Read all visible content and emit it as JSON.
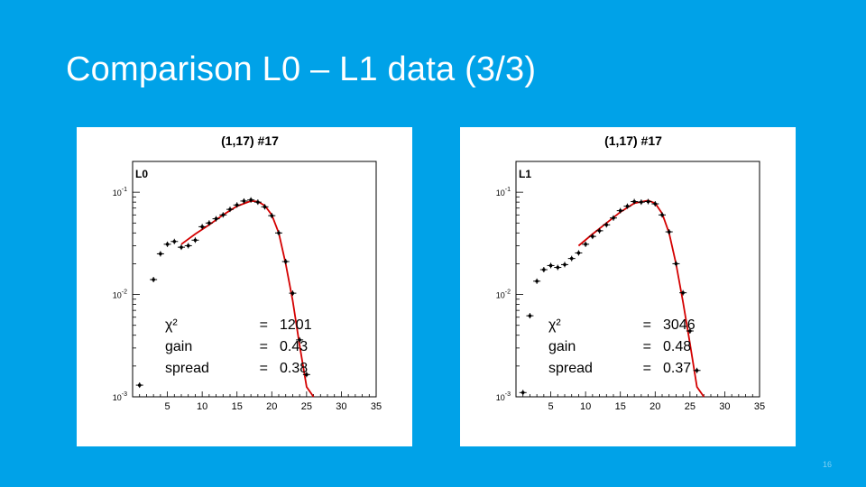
{
  "slide": {
    "title": "Comparison L0 – L1 data (3/3)",
    "page_number": "16"
  },
  "colors": {
    "background": "#00A2E8",
    "fit_line": "#d40000",
    "points": "#000000"
  },
  "chart_data": [
    {
      "type": "scatter",
      "panel_label": "L0",
      "title": "(1,17) #17",
      "xlabel": "",
      "ylabel": "",
      "xlim": [
        0,
        35
      ],
      "ylim": [
        0.001,
        0.2
      ],
      "yscale": "log",
      "xticks": [
        "5",
        "10",
        "15",
        "20",
        "25",
        "30",
        "35"
      ],
      "yticks": [
        "10^-3",
        "10^-2",
        "10^-1"
      ],
      "x": [
        1.0,
        3.0,
        4.0,
        5.0,
        6.0,
        7.0,
        8.0,
        9.0,
        10.0,
        11.0,
        12.0,
        13.0,
        14.0,
        15.0,
        16.0,
        17.0,
        18.0,
        19.0,
        20.0,
        21.0,
        22.0,
        23.0,
        24.0,
        25.0
      ],
      "y": [
        0.0013,
        0.014,
        0.025,
        0.031,
        0.033,
        0.029,
        0.03,
        0.034,
        0.046,
        0.05,
        0.055,
        0.06,
        0.068,
        0.075,
        0.082,
        0.084,
        0.08,
        0.072,
        0.059,
        0.04,
        0.021,
        0.0103,
        0.0036,
        0.00165
      ],
      "fit": {
        "x": [
          7,
          9,
          11,
          13,
          15,
          17,
          18,
          19,
          20,
          21,
          22,
          23,
          24,
          25,
          26
        ],
        "y": [
          0.031,
          0.039,
          0.048,
          0.06,
          0.073,
          0.082,
          0.081,
          0.074,
          0.06,
          0.04,
          0.02,
          0.0088,
          0.0032,
          0.00125,
          0.001
        ]
      },
      "annotations": [
        {
          "name": "χ²",
          "value": "1201"
        },
        {
          "name": "gain",
          "value": "0.43"
        },
        {
          "name": "spread",
          "value": "0.38"
        }
      ]
    },
    {
      "type": "scatter",
      "panel_label": "L1",
      "title": "(1,17) #17",
      "xlabel": "",
      "ylabel": "",
      "xlim": [
        0,
        35
      ],
      "ylim": [
        0.001,
        0.2
      ],
      "yscale": "log",
      "xticks": [
        "5",
        "10",
        "15",
        "20",
        "25",
        "30",
        "35"
      ],
      "yticks": [
        "10^-3",
        "10^-2",
        "10^-1"
      ],
      "x": [
        1.0,
        2.0,
        3.0,
        4.0,
        5.0,
        6.0,
        7.0,
        8.0,
        9.0,
        10.0,
        11.0,
        12.0,
        13.0,
        14.0,
        15.0,
        16.0,
        17.0,
        18.0,
        19.0,
        20.0,
        21.0,
        22.0,
        23.0,
        24.0,
        25.0,
        26.0
      ],
      "y": [
        0.0011,
        0.0062,
        0.0135,
        0.0175,
        0.0192,
        0.0184,
        0.0196,
        0.0225,
        0.0255,
        0.031,
        0.037,
        0.042,
        0.048,
        0.056,
        0.066,
        0.073,
        0.081,
        0.08,
        0.081,
        0.077,
        0.06,
        0.041,
        0.02,
        0.0104,
        0.0044,
        0.00181
      ],
      "fit": {
        "x": [
          9,
          11,
          13,
          15,
          17,
          19,
          20,
          21,
          22,
          23,
          24,
          25,
          26,
          27
        ],
        "y": [
          0.03,
          0.039,
          0.05,
          0.064,
          0.078,
          0.083,
          0.078,
          0.062,
          0.04,
          0.02,
          0.0085,
          0.0033,
          0.00125,
          0.001
        ]
      },
      "annotations": [
        {
          "name": "χ²",
          "value": "3046"
        },
        {
          "name": "gain",
          "value": "0.48"
        },
        {
          "name": "spread",
          "value": "0.37"
        }
      ]
    }
  ]
}
